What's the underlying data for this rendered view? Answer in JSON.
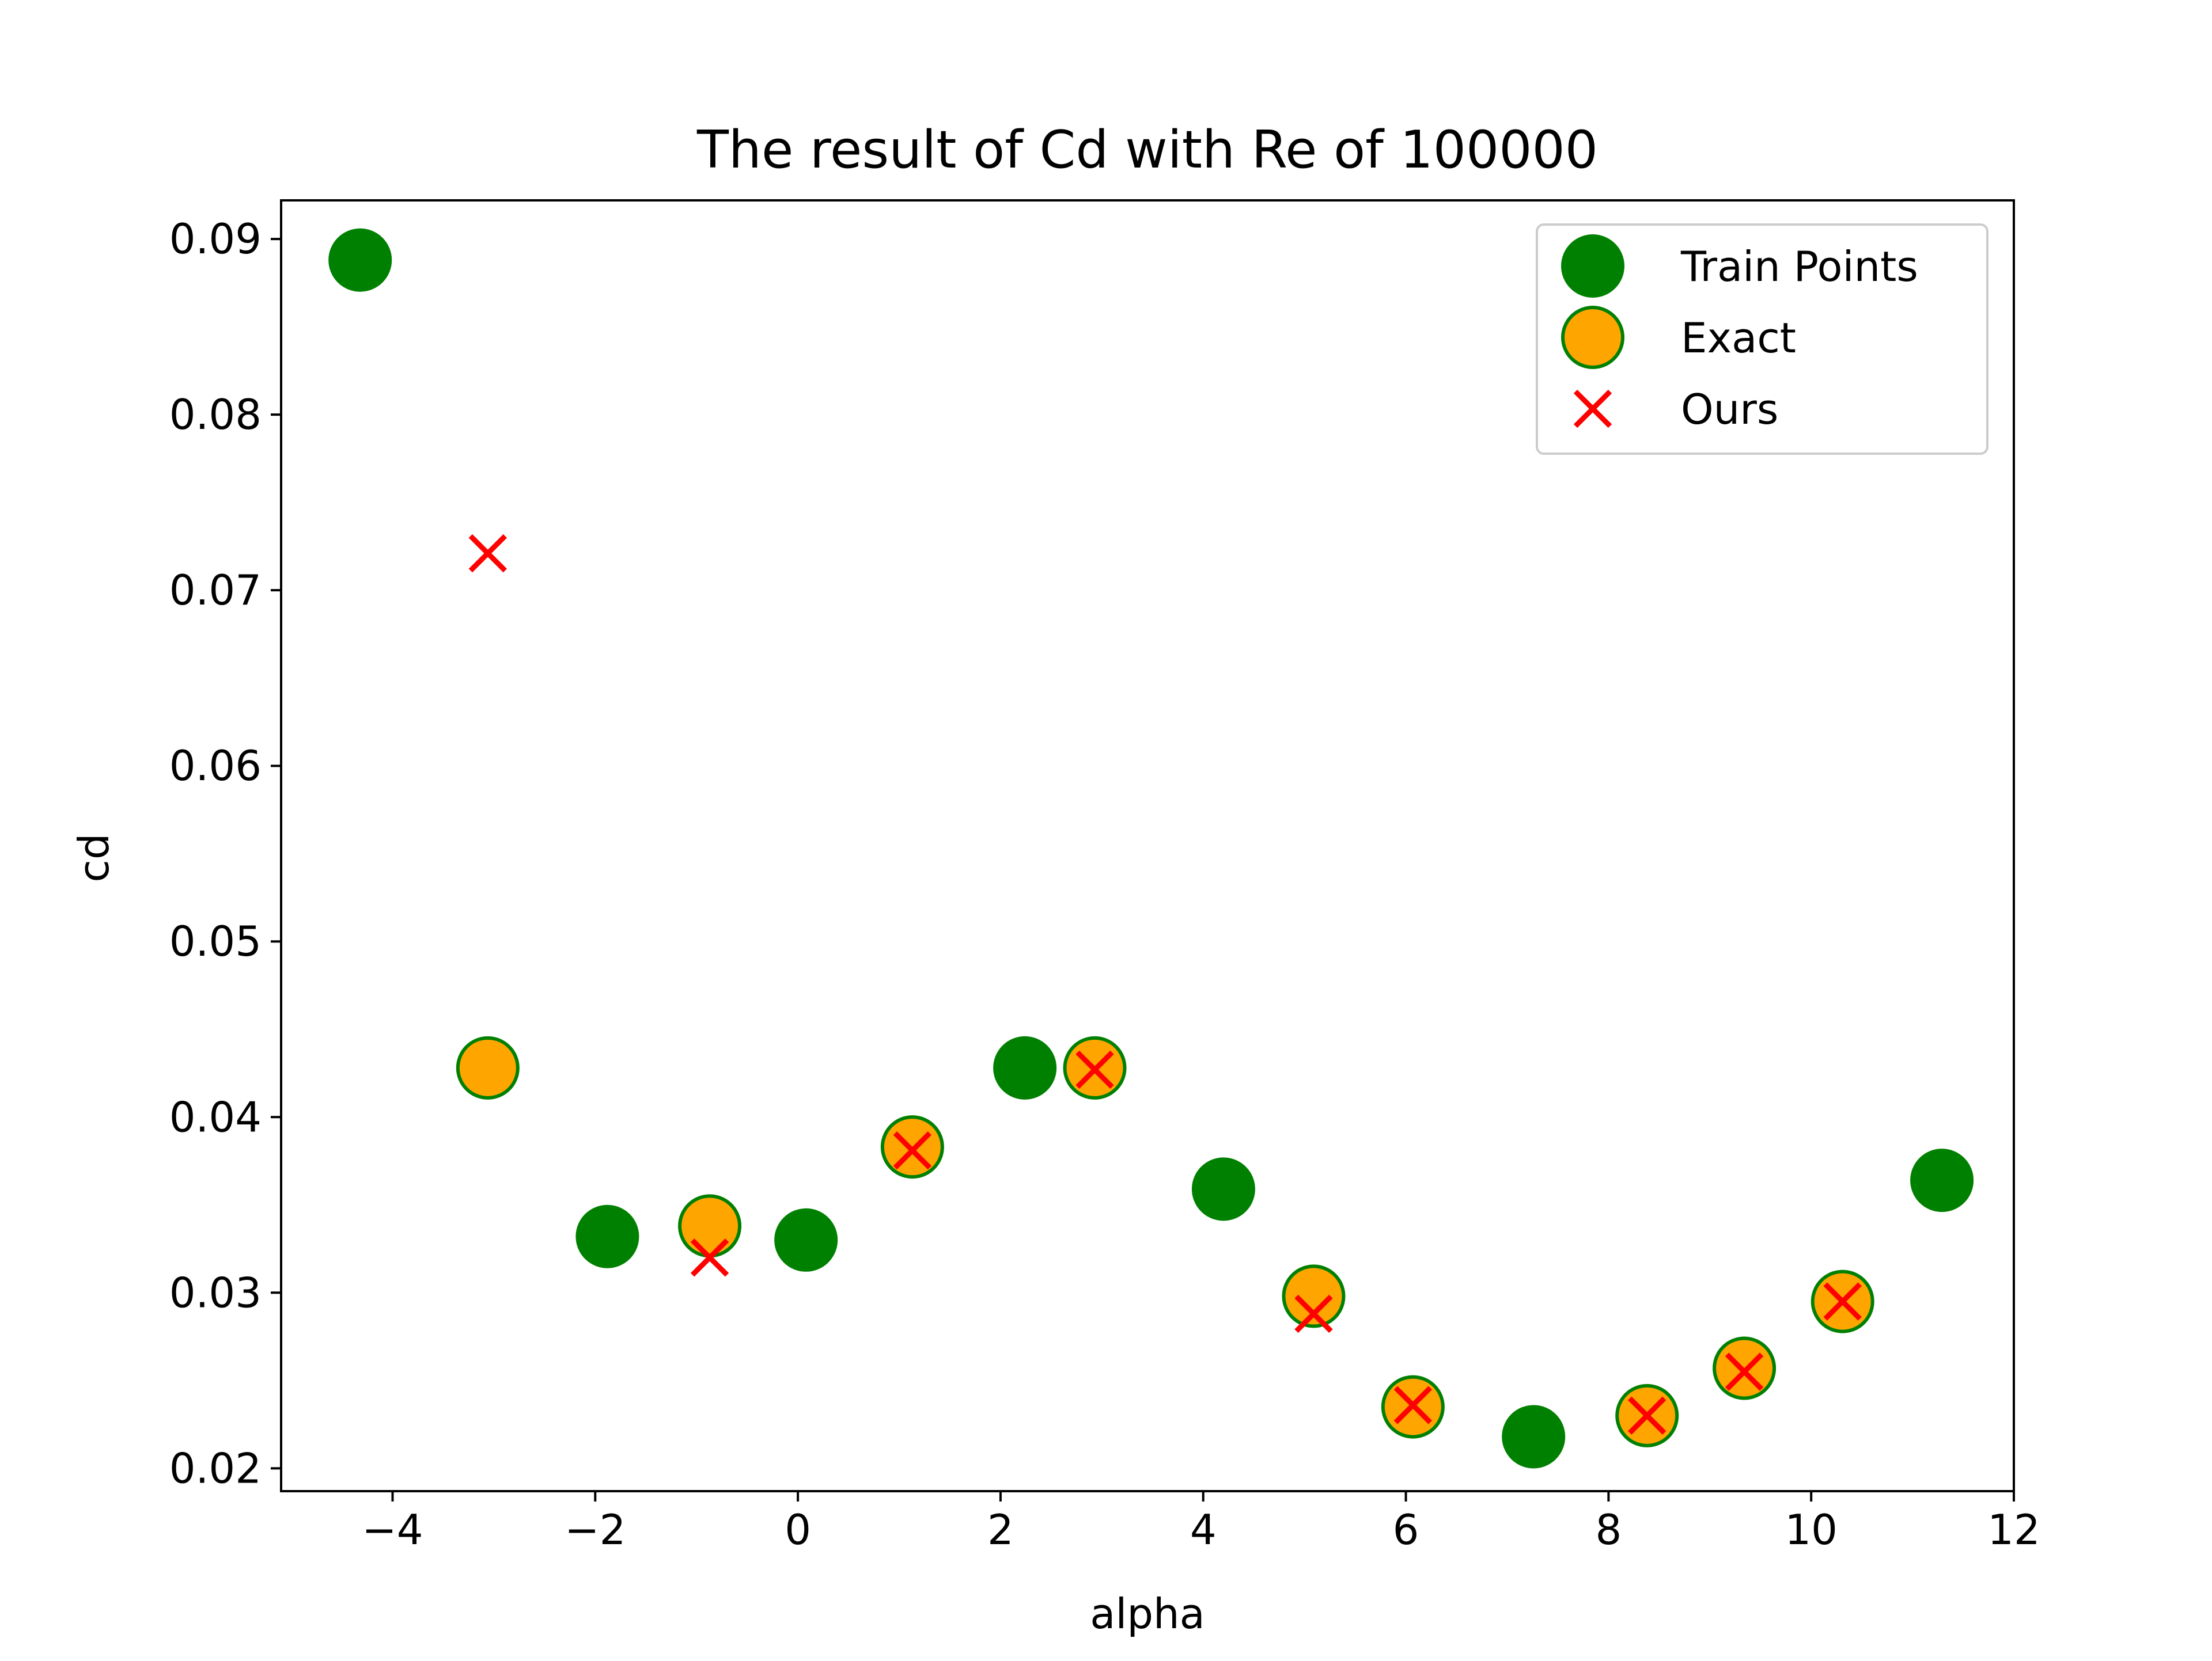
{
  "chart_data": {
    "type": "scatter",
    "title": "The result of Cd with Re of 100000",
    "xlabel": "alpha",
    "ylabel": "cd",
    "xlim": [
      -5.1,
      12.0
    ],
    "ylim": [
      0.0187,
      0.0922
    ],
    "x_ticks": [
      -4,
      -2,
      0,
      2,
      4,
      6,
      8,
      10,
      12
    ],
    "x_tick_labels": [
      "−4",
      "−2",
      "0",
      "2",
      "4",
      "6",
      "8",
      "10",
      "12"
    ],
    "y_ticks": [
      0.02,
      0.03,
      0.04,
      0.05,
      0.06,
      0.07,
      0.08,
      0.09
    ],
    "y_tick_labels": [
      "0.02",
      "0.03",
      "0.04",
      "0.05",
      "0.06",
      "0.07",
      "0.08",
      "0.09"
    ],
    "grid": false,
    "legend_position": "top-right",
    "series": [
      {
        "name": "Train Points",
        "marker": "circle",
        "color": "#008000",
        "edge_color": "#008000",
        "points": [
          {
            "x": -4.32,
            "y": 0.0888
          },
          {
            "x": -1.88,
            "y": 0.0332
          },
          {
            "x": 0.08,
            "y": 0.033
          },
          {
            "x": 2.24,
            "y": 0.0428
          },
          {
            "x": 4.2,
            "y": 0.0359
          },
          {
            "x": 7.26,
            "y": 0.0218
          },
          {
            "x": 11.29,
            "y": 0.0364
          }
        ]
      },
      {
        "name": "Exact",
        "marker": "circle",
        "color": "#FFA500",
        "edge_color": "#008000",
        "points": [
          {
            "x": -3.06,
            "y": 0.0428
          },
          {
            "x": -0.87,
            "y": 0.0338
          },
          {
            "x": 1.13,
            "y": 0.0383
          },
          {
            "x": 2.93,
            "y": 0.0428
          },
          {
            "x": 5.09,
            "y": 0.0298
          },
          {
            "x": 6.07,
            "y": 0.0235
          },
          {
            "x": 8.38,
            "y": 0.023
          },
          {
            "x": 9.34,
            "y": 0.0257
          },
          {
            "x": 10.31,
            "y": 0.0295
          }
        ]
      },
      {
        "name": "Ours",
        "marker": "x",
        "color": "#FF0000",
        "points": [
          {
            "x": -3.06,
            "y": 0.0721
          },
          {
            "x": -0.87,
            "y": 0.032
          },
          {
            "x": 1.13,
            "y": 0.0381
          },
          {
            "x": 2.93,
            "y": 0.0427
          },
          {
            "x": 5.09,
            "y": 0.0288
          },
          {
            "x": 6.07,
            "y": 0.0236
          },
          {
            "x": 8.38,
            "y": 0.023
          },
          {
            "x": 9.34,
            "y": 0.0255
          },
          {
            "x": 10.31,
            "y": 0.0295
          }
        ]
      }
    ]
  }
}
